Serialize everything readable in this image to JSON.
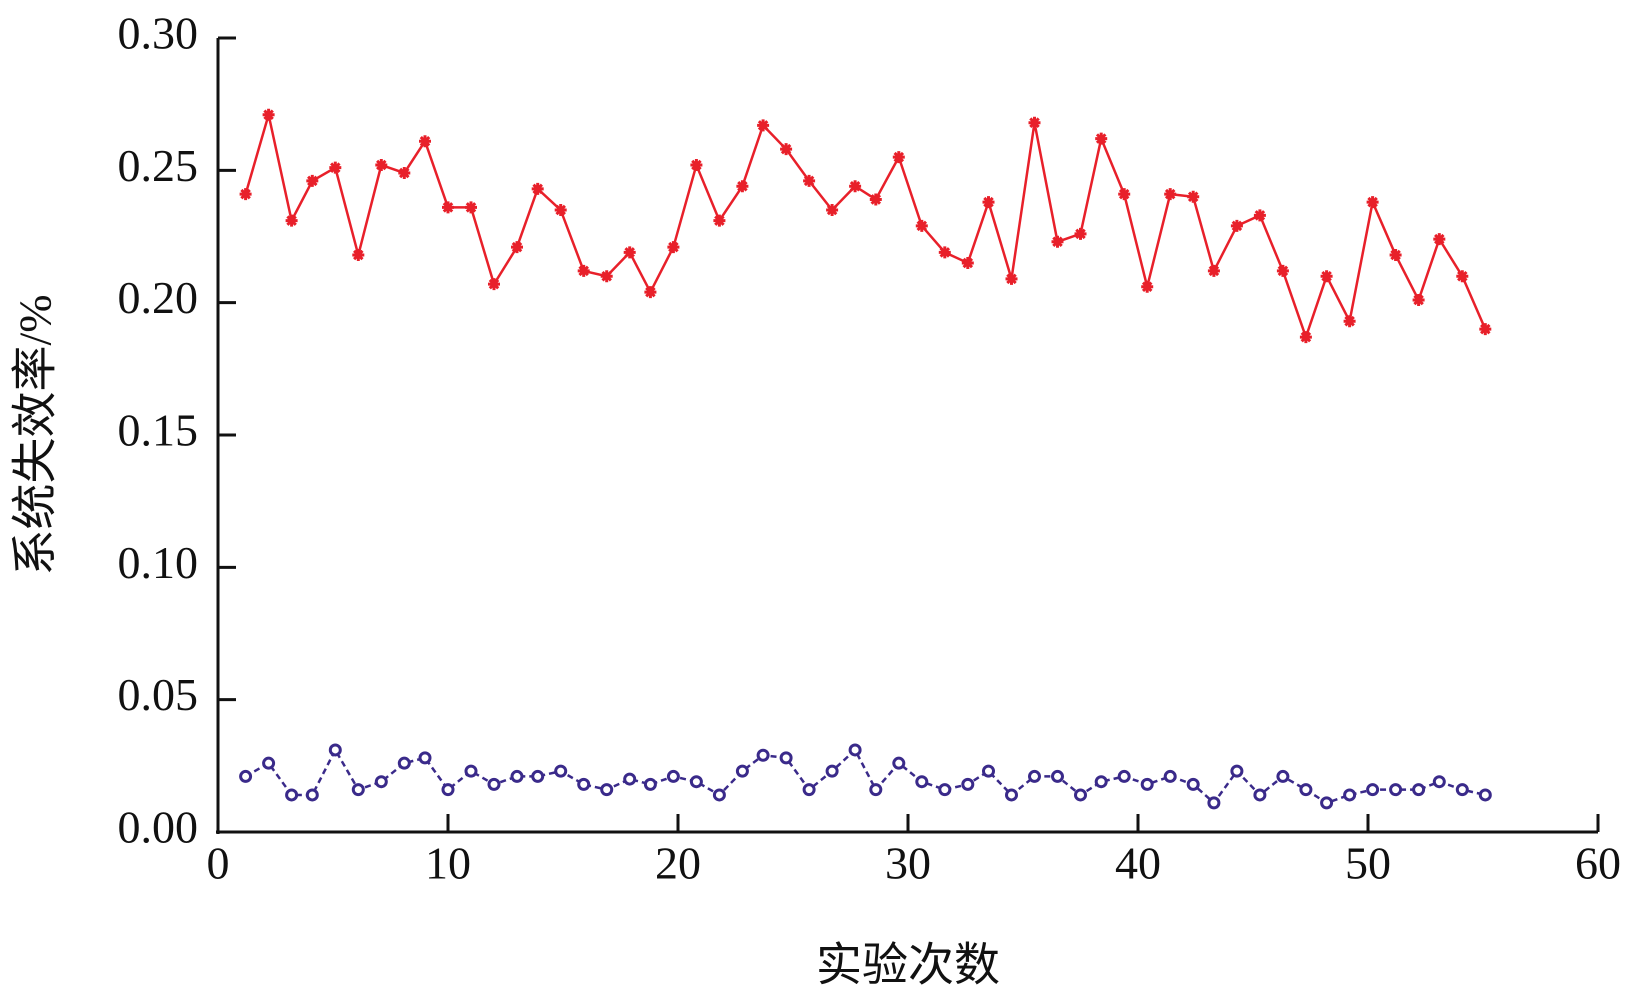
{
  "chart_data": {
    "type": "line",
    "xlabel": "实验次数",
    "ylabel": "系统失效率/%",
    "x": [
      1.2,
      2.2,
      3.2,
      4.1,
      5.1,
      6.1,
      7.1,
      8.1,
      9.0,
      10.0,
      11.0,
      12.0,
      13.0,
      13.9,
      14.9,
      15.9,
      16.9,
      17.9,
      18.8,
      19.8,
      20.8,
      21.8,
      22.8,
      23.7,
      24.7,
      25.7,
      26.7,
      27.7,
      28.6,
      29.6,
      30.6,
      31.6,
      32.6,
      33.5,
      34.5,
      35.5,
      36.5,
      37.5,
      38.4,
      39.4,
      40.4,
      41.4,
      42.4,
      43.3,
      44.3,
      45.3,
      46.3,
      47.3,
      48.2,
      49.2,
      50.2,
      51.2,
      52.2,
      53.1,
      54.1,
      55.1
    ],
    "series": [
      {
        "color": "#e8202a",
        "marker": "star",
        "dashed": false,
        "values": [
          0.241,
          0.271,
          0.231,
          0.246,
          0.251,
          0.218,
          0.252,
          0.249,
          0.261,
          0.236,
          0.236,
          0.207,
          0.221,
          0.243,
          0.235,
          0.212,
          0.21,
          0.219,
          0.204,
          0.221,
          0.252,
          0.231,
          0.244,
          0.267,
          0.258,
          0.246,
          0.235,
          0.244,
          0.239,
          0.255,
          0.229,
          0.219,
          0.215,
          0.238,
          0.209,
          0.268,
          0.223,
          0.226,
          0.262,
          0.241,
          0.206,
          0.241,
          0.24,
          0.212,
          0.229,
          0.233,
          0.212,
          0.187,
          0.21,
          0.193,
          0.238,
          0.218,
          0.201,
          0.224,
          0.21,
          0.19
        ]
      },
      {
        "color": "#3a2a8a",
        "marker": "circle",
        "dashed": true,
        "values": [
          0.021,
          0.026,
          0.014,
          0.014,
          0.031,
          0.016,
          0.019,
          0.026,
          0.028,
          0.016,
          0.023,
          0.018,
          0.021,
          0.021,
          0.023,
          0.018,
          0.016,
          0.02,
          0.018,
          0.021,
          0.019,
          0.014,
          0.023,
          0.029,
          0.028,
          0.016,
          0.023,
          0.031,
          0.016,
          0.026,
          0.019,
          0.016,
          0.018,
          0.023,
          0.014,
          0.021,
          0.021,
          0.014,
          0.019,
          0.021,
          0.018,
          0.021,
          0.018,
          0.011,
          0.023,
          0.014,
          0.021,
          0.016,
          0.011,
          0.014,
          0.016,
          0.016,
          0.016,
          0.019,
          0.016,
          0.014
        ]
      }
    ],
    "xlim": [
      0,
      60
    ],
    "xticks": [
      0,
      10,
      20,
      30,
      40,
      50,
      60
    ],
    "ylim": [
      0,
      0.3
    ],
    "yticks": [
      {
        "value": 0,
        "label": "0.00"
      },
      0.05,
      {
        "value": 0.1,
        "label": "0.10"
      },
      0.15,
      {
        "value": 0.2,
        "label": "0.20"
      },
      0.25,
      {
        "value": 0.3,
        "label": "0.30"
      }
    ]
  }
}
